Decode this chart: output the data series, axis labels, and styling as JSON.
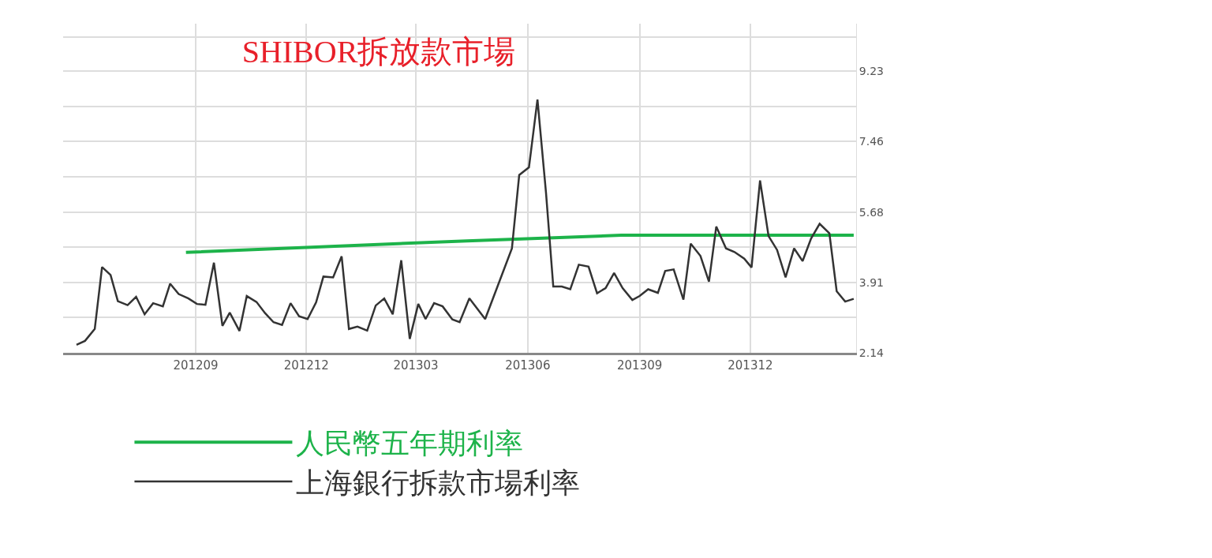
{
  "chart_data": {
    "type": "line",
    "title": "SHIBOR拆放款市場",
    "xlim": [
      "2012-05-15",
      "2014-02-26"
    ],
    "xticks": [
      {
        "value": "2012-09-01",
        "label": "201209"
      },
      {
        "value": "2012-12-01",
        "label": "201212"
      },
      {
        "value": "2013-03-01",
        "label": "201303"
      },
      {
        "value": "2013-06-01",
        "label": "201306"
      },
      {
        "value": "2013-09-01",
        "label": "201309"
      },
      {
        "value": "2013-12-01",
        "label": "201312"
      }
    ],
    "ylim": [
      2.14,
      10.43
    ],
    "yticks": [
      2.14,
      {
        "value": 3.03,
        "label": null
      },
      3.91,
      {
        "value": 4.8,
        "label": null
      },
      5.68,
      {
        "value": 6.57,
        "label": null
      },
      7.46,
      {
        "value": 8.35,
        "label": null
      },
      9.23,
      {
        "value": 10.1,
        "label": null
      }
    ],
    "grid": true,
    "legend": "bottom",
    "marker": "none",
    "line_style": "solid",
    "series": [
      {
        "name": "人民幣五年期利率",
        "color": "#1db34a",
        "x": [
          "2012-08-24",
          "2013-04-12",
          "2013-08-17",
          "2014-02-24"
        ],
        "values": [
          4.67,
          4.96,
          5.1,
          5.1
        ]
      },
      {
        "name": "上海銀行拆款市場利率",
        "color": "#333333",
        "x": [
          "2012-05-26",
          "2012-06-02",
          "2012-06-10",
          "2012-06-16",
          "2012-06-23",
          "2012-06-29",
          "2012-07-07",
          "2012-07-14",
          "2012-07-21",
          "2012-07-28",
          "2012-08-05",
          "2012-08-11",
          "2012-08-18",
          "2012-08-26",
          "2012-09-02",
          "2012-09-09",
          "2012-09-16",
          "2012-09-23",
          "2012-09-29",
          "2012-10-07",
          "2012-10-13",
          "2012-10-21",
          "2012-10-28",
          "2012-11-04",
          "2012-11-11",
          "2012-11-18",
          "2012-11-25",
          "2012-12-02",
          "2012-12-09",
          "2012-12-15",
          "2012-12-23",
          "2012-12-30",
          "2013-01-05",
          "2013-01-12",
          "2013-01-20",
          "2013-01-27",
          "2013-02-03",
          "2013-02-10",
          "2013-02-17",
          "2013-02-24",
          "2013-03-03",
          "2013-03-09",
          "2013-03-16",
          "2013-03-23",
          "2013-03-31",
          "2013-04-06",
          "2013-04-14",
          "2013-04-27",
          "2013-05-19",
          "2013-05-25",
          "2013-06-02",
          "2013-06-09",
          "2013-06-16",
          "2013-06-22",
          "2013-06-29",
          "2013-07-06",
          "2013-07-13",
          "2013-07-21",
          "2013-07-28",
          "2013-08-04",
          "2013-08-11",
          "2013-08-18",
          "2013-08-26",
          "2013-09-01",
          "2013-09-08",
          "2013-09-16",
          "2013-09-22",
          "2013-09-29",
          "2013-10-07",
          "2013-10-13",
          "2013-10-21",
          "2013-10-28",
          "2013-11-03",
          "2013-11-11",
          "2013-11-18",
          "2013-11-26",
          "2013-12-02",
          "2013-12-09",
          "2013-12-16",
          "2013-12-23",
          "2013-12-30",
          "2014-01-06",
          "2014-01-13",
          "2014-01-20",
          "2014-01-27",
          "2014-02-04",
          "2014-02-10",
          "2014-02-17",
          "2014-02-24"
        ],
        "values": [
          2.34,
          2.44,
          2.74,
          4.3,
          4.1,
          3.44,
          3.34,
          3.55,
          3.11,
          3.39,
          3.31,
          3.88,
          3.62,
          3.51,
          3.37,
          3.35,
          4.41,
          2.82,
          3.15,
          2.69,
          3.57,
          3.42,
          3.14,
          2.91,
          2.84,
          3.39,
          3.06,
          2.99,
          3.41,
          4.06,
          4.04,
          4.57,
          2.74,
          2.8,
          2.7,
          3.33,
          3.51,
          3.11,
          4.47,
          2.49,
          3.37,
          2.99,
          3.39,
          3.31,
          2.98,
          2.91,
          3.51,
          2.99,
          4.77,
          6.62,
          6.81,
          8.52,
          6.18,
          3.81,
          3.81,
          3.74,
          4.36,
          4.31,
          3.64,
          3.77,
          4.15,
          3.77,
          3.47,
          3.57,
          3.74,
          3.65,
          4.2,
          4.24,
          3.48,
          4.89,
          4.58,
          3.93,
          5.32,
          4.77,
          4.68,
          4.51,
          4.29,
          6.48,
          5.08,
          4.73,
          4.04,
          4.77,
          4.45,
          5.02,
          5.39,
          5.15,
          3.69,
          3.43,
          3.5
        ]
      }
    ]
  }
}
